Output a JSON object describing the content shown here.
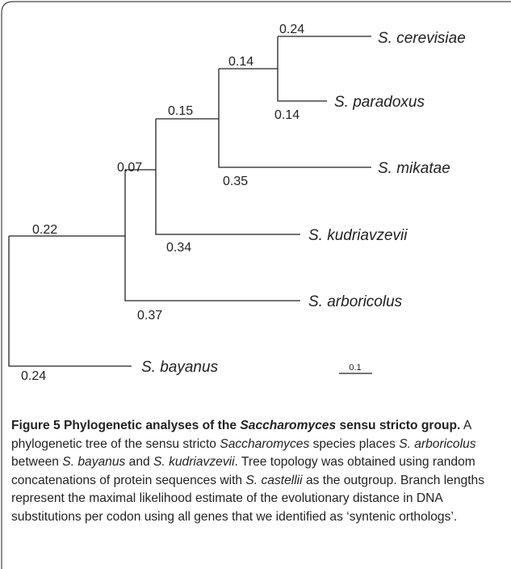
{
  "tree": {
    "leaves": [
      "S. cerevisiae",
      "S. paradoxus",
      "S. mikatae",
      "S. kudriavzevii",
      "S. arboricolus",
      "S. bayanus"
    ],
    "branch_lengths": [
      "0.24",
      "0.14",
      "0.14",
      "0.35",
      "0.15",
      "0.34",
      "0.07",
      "0.37",
      "0.22",
      "0.24"
    ],
    "scale_bar": "0.1"
  },
  "caption": {
    "title": [
      "Figure 5 Phylogenetic analyses of the ",
      "Saccharomyces",
      " sensu stricto group."
    ],
    "text": [
      " A phylogenetic tree of the sensu stricto ",
      "Saccharomyces",
      " species places ",
      "S. arboricolus",
      " between ",
      "S. bayanus",
      " and ",
      "S. kudriavzevii",
      ". Tree topology was obtained using random concatenations of protein sequences with ",
      "S. castellii",
      " as the outgroup. Branch lengths represent the maximal likelihood estimate of the evolutionary distance in DNA substitutions per codon using all genes that we identified as ‘syntenic orthologs’."
    ]
  }
}
